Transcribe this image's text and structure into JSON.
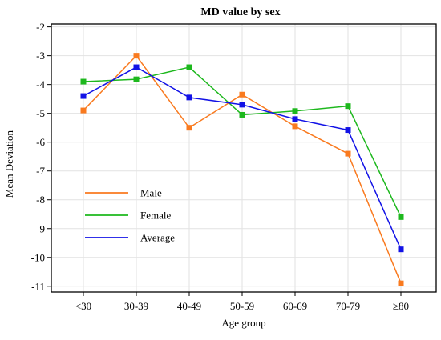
{
  "chart_data": {
    "type": "line",
    "title": "MD value by sex",
    "xlabel": "Age group",
    "ylabel": "Mean Deviation",
    "categories": [
      "<30",
      "30-39",
      "40-49",
      "50-59",
      "60-69",
      "70-79",
      "≥80"
    ],
    "ylim": [
      -11.2,
      -1.9
    ],
    "yticks": [
      -2,
      -3,
      -4,
      -5,
      -6,
      -7,
      -8,
      -9,
      -10,
      -11
    ],
    "grid": true,
    "legend_position": "middle-left",
    "series": [
      {
        "name": "Male",
        "color": "#F97A1F",
        "values": [
          -4.9,
          -3.0,
          -5.5,
          -4.35,
          -5.45,
          -6.4,
          -10.9
        ]
      },
      {
        "name": "Female",
        "color": "#1DB81D",
        "values": [
          -3.9,
          -3.82,
          -3.4,
          -5.05,
          -4.92,
          -4.75,
          -8.6
        ]
      },
      {
        "name": "Average",
        "color": "#1212E6",
        "values": [
          -4.4,
          -3.4,
          -4.45,
          -4.7,
          -5.2,
          -5.58,
          -9.72
        ]
      }
    ]
  }
}
